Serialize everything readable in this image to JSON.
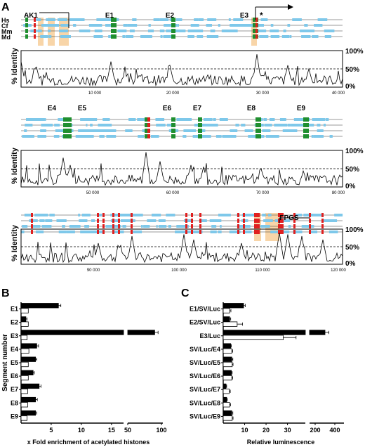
{
  "panels": {
    "A": "A",
    "B": "B",
    "C": "C"
  },
  "colors": {
    "exon": "#7ec8ea",
    "cons_green": "#1f8f2f",
    "cons_red": "#e02020",
    "highlight": "#f8d5a8",
    "line": "#000000"
  },
  "species": [
    "Hs",
    "Cf",
    "Mm",
    "Md"
  ],
  "identity_ticks": [
    "100%",
    "50%",
    "0%"
  ],
  "ylabel_identity": "% Identity",
  "rows": [
    {
      "x_ticks": [
        "10 000",
        "20 000",
        "30 000",
        "40 000"
      ],
      "labels": [
        {
          "text": "AK1",
          "bold": true
        },
        {
          "text": "E1"
        },
        {
          "text": "E2"
        },
        {
          "text": "E3"
        }
      ],
      "asterisk": "*"
    },
    {
      "x_ticks": [
        "50 000",
        "60 000",
        "70 000",
        "80 000"
      ],
      "labels": [
        {
          "text": "E4"
        },
        {
          "text": "E5"
        },
        {
          "text": "E6"
        },
        {
          "text": "E7"
        },
        {
          "text": "E8"
        },
        {
          "text": "E9"
        }
      ]
    },
    {
      "x_ticks": [
        "90 000",
        "100 000",
        "110 000",
        "120 000"
      ],
      "labels": [
        {
          "text": "FPGS"
        }
      ]
    }
  ],
  "chart_data": [
    {
      "type": "bar",
      "panel": "B",
      "categories": [
        "E1",
        "E2",
        "E3",
        "E4",
        "E5",
        "E6",
        "E7",
        "E8",
        "E9"
      ],
      "series": [
        {
          "values": [
            6.2,
            0.8,
            90,
            2.6,
            2.4,
            2.0,
            3.0,
            2.4,
            2.4
          ],
          "errors": [
            0.4,
            0.2,
            5,
            0.3,
            0.2,
            0.2,
            0.3,
            0.3,
            0.2
          ]
        },
        {
          "values": [
            1.2,
            1.2,
            1.0,
            1.3,
            1.2,
            1.2,
            1.1,
            1.1,
            1.0
          ],
          "errors": [
            0,
            0,
            0,
            0,
            0,
            0,
            0,
            0,
            0
          ]
        }
      ],
      "xticks": [
        "5",
        "10",
        "15",
        "50",
        "100"
      ],
      "xlabel": "x Fold enrichment of acetylated histones",
      "ylabel": "Segment number",
      "axis_break": true
    },
    {
      "type": "bar",
      "panel": "C",
      "categories": [
        "E1/SV/Luc",
        "E2/SV/Luc",
        "E3/Luc",
        "SV/Luc/E4",
        "SV/Luc/E5",
        "SV/Luc/E6",
        "SV/Luc/E7",
        "SV/Luc/E8",
        "SV/Luc/E9"
      ],
      "series": [
        {
          "values": [
            9.5,
            3,
            300,
            3.5,
            4,
            3.8,
            1.3,
            1.6,
            4
          ],
          "errors": [
            0.8,
            0.5,
            40,
            0.3,
            0.5,
            0.4,
            0.3,
            0.3,
            0.5
          ]
        },
        {
          "values": [
            3,
            6.5,
            28,
            4,
            4.2,
            4,
            2.8,
            3,
            4.2
          ],
          "errors": [
            0.6,
            2.5,
            6,
            0.4,
            0.4,
            0.4,
            0.5,
            0.4,
            0.4
          ]
        }
      ],
      "xticks": [
        "10",
        "20",
        "30",
        "200",
        "400"
      ],
      "xlabel": "Relative luminescence",
      "axis_break": true
    }
  ]
}
